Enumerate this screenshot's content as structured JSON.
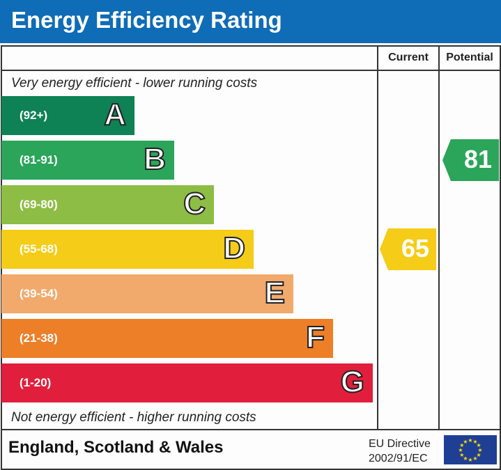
{
  "title": "Energy Efficiency Rating",
  "chart_data": {
    "type": "bar",
    "columns": [
      "Current",
      "Potential"
    ],
    "top_note": "Very energy efficient - lower running costs",
    "bottom_note": "Not energy efficient - higher running costs",
    "bands": [
      {
        "letter": "A",
        "range": "(92+)",
        "color": "#0e8155"
      },
      {
        "letter": "B",
        "range": "(81-91)",
        "color": "#2aa55a"
      },
      {
        "letter": "C",
        "range": "(69-80)",
        "color": "#8dbd45"
      },
      {
        "letter": "D",
        "range": "(55-68)",
        "color": "#f5cc17"
      },
      {
        "letter": "E",
        "range": "(39-54)",
        "color": "#f2a96c"
      },
      {
        "letter": "F",
        "range": "(21-38)",
        "color": "#ec7f27"
      },
      {
        "letter": "G",
        "range": "(1-20)",
        "color": "#e11f3c"
      }
    ],
    "current": {
      "value": "65",
      "band": "D",
      "color": "#f5cc17"
    },
    "potential": {
      "value": "81",
      "band": "B",
      "color": "#2aa55a"
    }
  },
  "footer": {
    "region": "England, Scotland & Wales",
    "directive_line1": "EU Directive",
    "directive_line2": "2002/91/EC"
  }
}
